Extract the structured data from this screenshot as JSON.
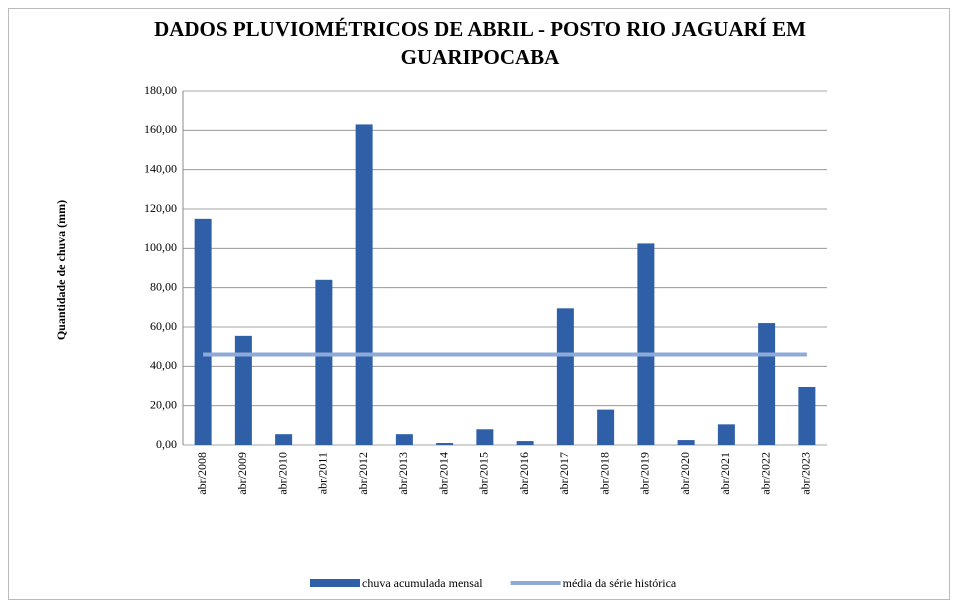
{
  "chart_data": {
    "type": "bar",
    "title": [
      "DADOS PLUVIOMÉTRICOS DE ABRIL - POSTO RIO JAGUARÍ EM",
      "GUARIPOCABA"
    ],
    "y_label": "Quantidade  de  chuva  (mm)",
    "categories": [
      "abr/2008",
      "abr/2009",
      "abr/2010",
      "abr/2011",
      "abr/2012",
      "abr/2013",
      "abr/2014",
      "abr/2015",
      "abr/2016",
      "abr/2017",
      "abr/2018",
      "abr/2019",
      "abr/2020",
      "abr/2021",
      "abr/2022",
      "abr/2023"
    ],
    "series": [
      {
        "name": "chuva acumulada mensal",
        "type": "bar",
        "color": "#2f5fa6",
        "values": [
          115,
          55.5,
          5.5,
          84,
          163,
          5.5,
          1,
          8,
          2,
          69.5,
          18,
          102.5,
          2.5,
          10.5,
          62,
          29.5
        ]
      },
      {
        "name": "média da série histórica",
        "type": "line",
        "color": "#8eaad8",
        "values": [
          46,
          46,
          46,
          46,
          46,
          46,
          46,
          46,
          46,
          46,
          46,
          46,
          46,
          46,
          46,
          46
        ]
      }
    ],
    "ylim": [
      0,
      180
    ],
    "yticks": [
      {
        "value": 0,
        "label": "0,00"
      },
      {
        "value": 20,
        "label": "20,00"
      },
      {
        "value": 40,
        "label": "40,00"
      },
      {
        "value": 60,
        "label": "60,00"
      },
      {
        "value": 80,
        "label": "80,00"
      },
      {
        "value": 100,
        "label": "100,00"
      },
      {
        "value": 120,
        "label": "120,00"
      },
      {
        "value": 140,
        "label": "140,00"
      },
      {
        "value": 160,
        "label": "160,00"
      },
      {
        "value": 180,
        "label": "180,00"
      }
    ],
    "grid": true,
    "legend": "bottom"
  }
}
